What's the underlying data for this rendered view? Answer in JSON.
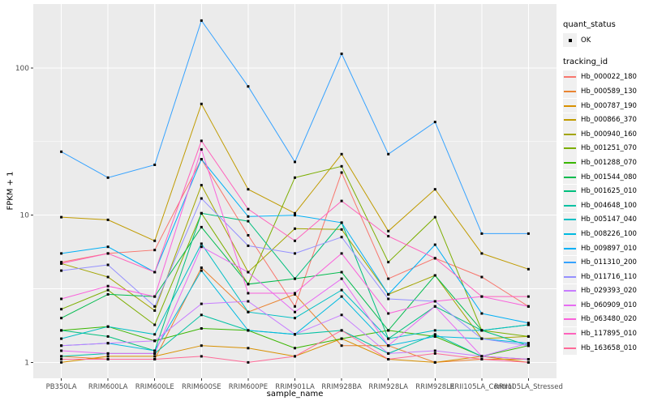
{
  "legend": {
    "quant_status_title": "quant_status",
    "ok_label": "OK",
    "tracking_id_title": "tracking_id"
  },
  "chart_data": {
    "type": "line",
    "title": "",
    "xlabel": "sample_name",
    "ylabel": "FPKM + 1",
    "yscale": "log10",
    "ylim": [
      0.78,
      272
    ],
    "yticks": [
      1,
      10,
      100
    ],
    "ytick_labels": [
      "1",
      "10",
      "100"
    ],
    "yminor_ticks": [
      3.162,
      31.62
    ],
    "grid": "on",
    "legend_position": "right",
    "marker": {
      "shape": "square",
      "color": "#000000",
      "status_label": "OK"
    },
    "categories": [
      "PB350LA",
      "RRIM600LA",
      "RRIM600LE",
      "RRIM600SE",
      "RRIM600PE",
      "RRIM901LA",
      "RRIM928BA",
      "RRIM928LA",
      "RRIM928LE",
      "RRII105LA_Control",
      "RRII105LA_Stressed"
    ],
    "series": [
      {
        "name": "Hb_000022_180",
        "color": "#F8766D",
        "values": [
          4.8,
          5.5,
          5.8,
          24,
          7.3,
          2.4,
          19.5,
          3.7,
          5.1,
          3.8,
          2.4
        ]
      },
      {
        "name": "Hb_000589_130",
        "color": "#EA8331",
        "values": [
          1.1,
          1.05,
          1.05,
          4.4,
          2.2,
          2.9,
          1.3,
          1.3,
          1.0,
          1.05,
          1.05
        ]
      },
      {
        "name": "Hb_000787_190",
        "color": "#D89000",
        "values": [
          1.0,
          1.1,
          1.1,
          1.3,
          1.25,
          1.1,
          1.45,
          1.05,
          1.0,
          1.1,
          1.0
        ]
      },
      {
        "name": "Hb_000866_370",
        "color": "#C09B00",
        "values": [
          9.7,
          9.3,
          6.7,
          57,
          15,
          10.3,
          26,
          7.8,
          15,
          5.5,
          4.3
        ]
      },
      {
        "name": "Hb_000940_160",
        "color": "#A3A500",
        "values": [
          4.7,
          3.8,
          2.25,
          16,
          4.1,
          8.1,
          8.0,
          2.9,
          3.9,
          1.45,
          1.5
        ]
      },
      {
        "name": "Hb_001251_070",
        "color": "#7CAE00",
        "values": [
          2.3,
          3.1,
          1.8,
          10.3,
          3.4,
          18,
          21.5,
          4.8,
          9.7,
          1.65,
          1.5
        ]
      },
      {
        "name": "Hb_001288_070",
        "color": "#39B600",
        "values": [
          1.65,
          1.75,
          1.4,
          1.7,
          1.65,
          1.25,
          1.45,
          1.65,
          1.5,
          1.1,
          1.3
        ]
      },
      {
        "name": "Hb_001544_080",
        "color": "#00BB4E",
        "values": [
          2.0,
          2.9,
          2.8,
          8.3,
          3.4,
          3.7,
          4.1,
          1.65,
          3.9,
          1.65,
          1.8
        ]
      },
      {
        "name": "Hb_001625_010",
        "color": "#00BF7D",
        "values": [
          1.65,
          1.5,
          1.2,
          10.3,
          9.1,
          3.7,
          8.9,
          1.45,
          2.4,
          1.65,
          1.3
        ]
      },
      {
        "name": "Hb_004648_100",
        "color": "#00C1A3",
        "values": [
          1.1,
          1.15,
          1.15,
          2.1,
          1.65,
          1.55,
          1.65,
          1.15,
          1.55,
          1.1,
          1.05
        ]
      },
      {
        "name": "Hb_005147_040",
        "color": "#00BFC4",
        "values": [
          1.45,
          1.75,
          1.55,
          6.4,
          2.2,
          2.0,
          3.1,
          1.45,
          1.65,
          1.65,
          1.8
        ]
      },
      {
        "name": "Hb_008226_100",
        "color": "#00BAE0",
        "values": [
          1.3,
          1.35,
          1.2,
          4.2,
          1.65,
          1.55,
          2.8,
          1.3,
          1.5,
          1.45,
          1.35
        ]
      },
      {
        "name": "Hb_009897_010",
        "color": "#00B0F6",
        "values": [
          5.5,
          6.1,
          4.1,
          24,
          9.8,
          10,
          8.9,
          2.9,
          6.3,
          2.15,
          1.85
        ]
      },
      {
        "name": "Hb_011310_200",
        "color": "#35A2FF",
        "values": [
          27,
          18,
          22,
          210,
          75,
          23,
          125,
          26,
          43,
          7.5,
          7.5
        ]
      },
      {
        "name": "Hb_011716_110",
        "color": "#9590FF",
        "values": [
          4.2,
          4.6,
          2.4,
          13,
          6.2,
          5.5,
          7.1,
          2.7,
          2.6,
          1.45,
          1.3
        ]
      },
      {
        "name": "Hb_029393_020",
        "color": "#C77CFF",
        "values": [
          1.3,
          1.35,
          1.4,
          2.5,
          2.6,
          1.55,
          2.1,
          1.15,
          1.2,
          1.1,
          1.35
        ]
      },
      {
        "name": "Hb_060909_010",
        "color": "#E76BF3",
        "values": [
          1.2,
          1.15,
          1.15,
          6.1,
          4.1,
          2.2,
          3.7,
          1.3,
          2.4,
          1.1,
          1.05
        ]
      },
      {
        "name": "Hb_063480_020",
        "color": "#FA62DB",
        "values": [
          2.7,
          3.3,
          2.8,
          28,
          2.95,
          2.95,
          5.5,
          2.15,
          2.6,
          2.8,
          2.4
        ]
      },
      {
        "name": "Hb_117895_010",
        "color": "#FF62BC",
        "values": [
          4.7,
          5.5,
          4.1,
          32,
          11,
          6.7,
          12.5,
          7.2,
          5.1,
          2.8,
          2.8
        ]
      },
      {
        "name": "Hb_163658_010",
        "color": "#FF6A98",
        "values": [
          1.05,
          1.05,
          1.05,
          1.1,
          1.0,
          1.1,
          1.65,
          1.05,
          1.15,
          1.05,
          1.0
        ]
      }
    ],
    "style": {
      "panel_bg": "#EBEBEB",
      "grid_color": "#FFFFFF",
      "tick_text_color": "#4D4D4D",
      "tick_mark_color": "#333333",
      "title_text_color": "#000000",
      "legend_key_bg": "#F0F0F0"
    }
  }
}
